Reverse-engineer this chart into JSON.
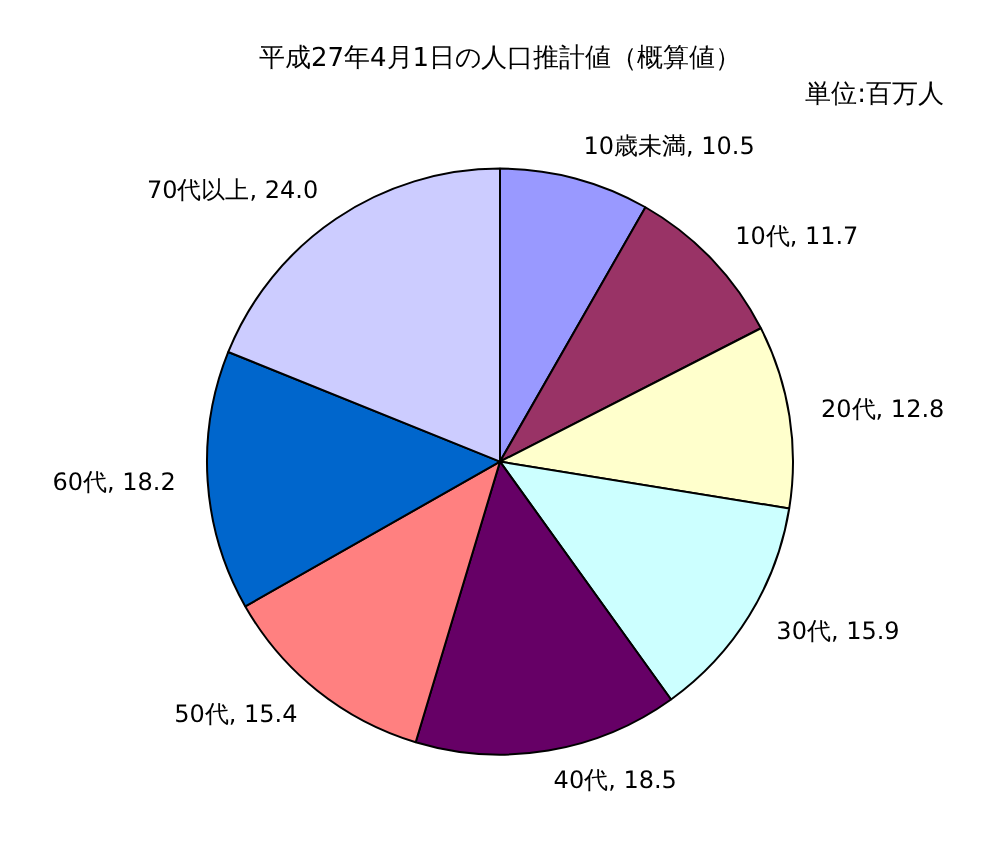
{
  "chart_data": {
    "type": "pie",
    "title": "平成27年4月1日の人口推計値（概算値）",
    "annotations": [
      "単位:百万人"
    ],
    "categories": [
      "10歳未満",
      "10代",
      "20代",
      "30代",
      "40代",
      "50代",
      "60代",
      "70代以上"
    ],
    "values": [
      10.5,
      11.7,
      12.8,
      15.9,
      18.5,
      15.4,
      18.2,
      24.0
    ],
    "value_labels": [
      "10.5",
      "11.7",
      "12.8",
      "15.9",
      "18.5",
      "15.4",
      "18.2",
      "24.0"
    ],
    "colors": [
      "#9999ff",
      "#993366",
      "#ffffcc",
      "#ccffff",
      "#660066",
      "#ff8080",
      "#0066cc",
      "#ccccff"
    ],
    "legend": false
  }
}
